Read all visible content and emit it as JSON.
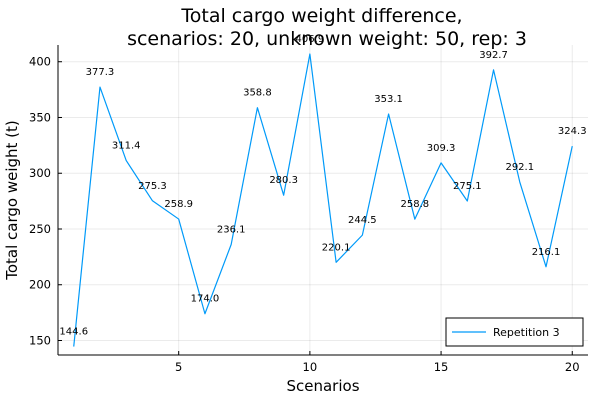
{
  "chart_data": {
    "type": "line",
    "title": [
      "Total cargo weight difference,",
      "scenarios: 20, unknown weight: 50, rep: 3"
    ],
    "xlabel": "Scenarios",
    "ylabel": "Total cargo weight (t)",
    "xlim": [
      0.4,
      20.6
    ],
    "ylim": [
      137,
      415
    ],
    "xticks": [
      5,
      10,
      15,
      20
    ],
    "yticks": [
      150,
      200,
      250,
      300,
      350,
      400
    ],
    "grid": true,
    "legend_position": "bottom-right",
    "series": [
      {
        "name": "Repetition 3",
        "color": "#009af9",
        "x": [
          1,
          2,
          3,
          4,
          5,
          6,
          7,
          8,
          9,
          10,
          11,
          12,
          13,
          14,
          15,
          16,
          17,
          18,
          19,
          20
        ],
        "y": [
          144.6,
          377.3,
          311.4,
          275.3,
          258.9,
          174.0,
          236.1,
          358.8,
          280.3,
          406.9,
          220.1,
          244.5,
          353.1,
          258.8,
          309.3,
          275.1,
          392.7,
          292.1,
          216.1,
          324.3
        ],
        "labels": [
          "144.6",
          "377.3",
          "311.4",
          "275.3",
          "258.9",
          "174.0",
          "236.1",
          "358.8",
          "280.3",
          "406.9",
          "220.1",
          "244.5",
          "353.1",
          "258.8",
          "309.3",
          "275.1",
          "392.7",
          "292.1",
          "216.1",
          "324.3"
        ]
      }
    ]
  }
}
